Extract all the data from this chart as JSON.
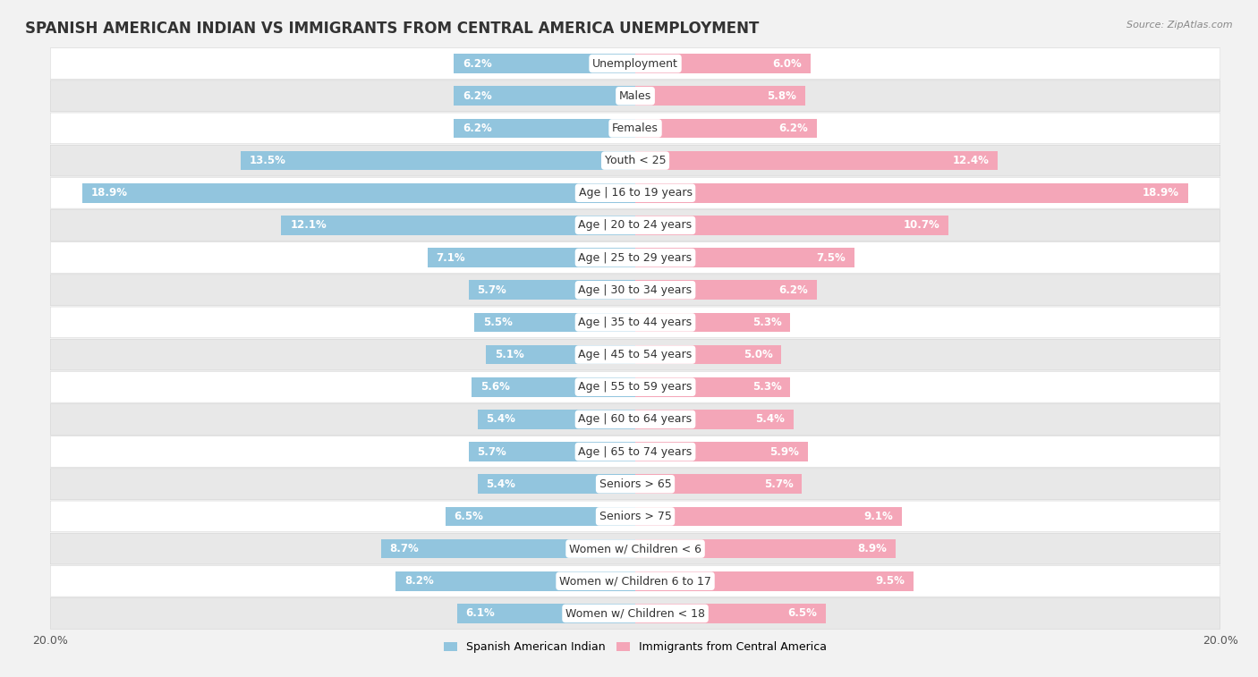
{
  "title": "SPANISH AMERICAN INDIAN VS IMMIGRANTS FROM CENTRAL AMERICA UNEMPLOYMENT",
  "source": "Source: ZipAtlas.com",
  "categories": [
    "Unemployment",
    "Males",
    "Females",
    "Youth < 25",
    "Age | 16 to 19 years",
    "Age | 20 to 24 years",
    "Age | 25 to 29 years",
    "Age | 30 to 34 years",
    "Age | 35 to 44 years",
    "Age | 45 to 54 years",
    "Age | 55 to 59 years",
    "Age | 60 to 64 years",
    "Age | 65 to 74 years",
    "Seniors > 65",
    "Seniors > 75",
    "Women w/ Children < 6",
    "Women w/ Children 6 to 17",
    "Women w/ Children < 18"
  ],
  "left_values": [
    6.2,
    6.2,
    6.2,
    13.5,
    18.9,
    12.1,
    7.1,
    5.7,
    5.5,
    5.1,
    5.6,
    5.4,
    5.7,
    5.4,
    6.5,
    8.7,
    8.2,
    6.1
  ],
  "right_values": [
    6.0,
    5.8,
    6.2,
    12.4,
    18.9,
    10.7,
    7.5,
    6.2,
    5.3,
    5.0,
    5.3,
    5.4,
    5.9,
    5.7,
    9.1,
    8.9,
    9.5,
    6.5
  ],
  "left_color": "#92c5de",
  "right_color": "#f4a6b8",
  "left_label": "Spanish American Indian",
  "right_label": "Immigrants from Central America",
  "xlim": 20.0,
  "bar_height": 0.6,
  "bg_color": "#f2f2f2",
  "row_colors": [
    "#ffffff",
    "#e8e8e8"
  ],
  "title_fontsize": 12,
  "label_fontsize": 9,
  "value_fontsize": 8.5,
  "axis_label_fontsize": 9
}
